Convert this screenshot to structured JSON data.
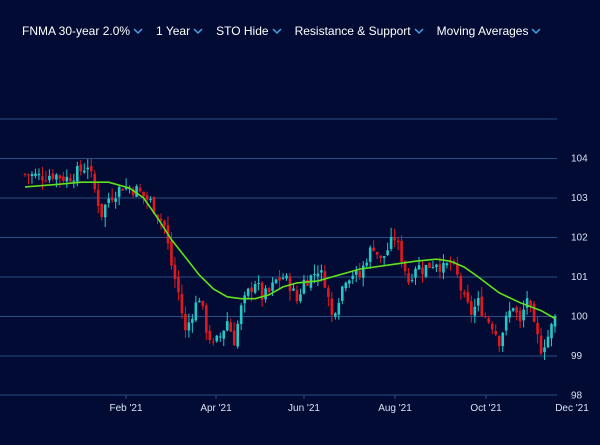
{
  "toolbar": {
    "symbol": "FNMA 30-year 2.0%",
    "range": "1 Year",
    "sto": "STO Hide",
    "resistance": "Resistance & Support",
    "moving_averages": "Moving Averages"
  },
  "colors": {
    "background": "#020b33",
    "grid": "#2a4f86",
    "axis_text": "#d8e1f0",
    "up": "#25c7c7",
    "down": "#e0191e",
    "ma": "#62e01d",
    "chevron": "#3ea4e6"
  },
  "chart_data": {
    "type": "candlestick",
    "x_ticks": [
      "Feb '21",
      "Apr '21",
      "Jun '21",
      "Aug '21",
      "Oct '21",
      "Dec '21"
    ],
    "y_ticks": [
      98,
      99,
      100,
      101,
      102,
      103,
      104
    ],
    "ylim": [
      97.9,
      105.1
    ],
    "close_path": [
      [
        0,
        103.6
      ],
      [
        4,
        103.55
      ],
      [
        8,
        103.6
      ],
      [
        12,
        103.5
      ],
      [
        16,
        103.7
      ],
      [
        18,
        103.85
      ],
      [
        20,
        103.2
      ],
      [
        22,
        102.6
      ],
      [
        24,
        103.0
      ],
      [
        28,
        103.3
      ],
      [
        32,
        103.2
      ],
      [
        36,
        102.9
      ],
      [
        40,
        102.3
      ],
      [
        42,
        101.3
      ],
      [
        44,
        100.6
      ],
      [
        46,
        99.6
      ],
      [
        48,
        100.1
      ],
      [
        50,
        100.5
      ],
      [
        52,
        99.7
      ],
      [
        54,
        99.25
      ],
      [
        56,
        99.5
      ],
      [
        58,
        99.9
      ],
      [
        60,
        99.4
      ],
      [
        62,
        100.2
      ],
      [
        64,
        100.6
      ],
      [
        66,
        100.9
      ],
      [
        68,
        100.5
      ],
      [
        70,
        100.6
      ],
      [
        72,
        100.9
      ],
      [
        74,
        101.0
      ],
      [
        76,
        100.8
      ],
      [
        78,
        100.4
      ],
      [
        80,
        100.9
      ],
      [
        82,
        101.0
      ],
      [
        84,
        101.2
      ],
      [
        86,
        100.9
      ],
      [
        88,
        100.0
      ],
      [
        90,
        100.5
      ],
      [
        92,
        101.0
      ],
      [
        94,
        101.1
      ],
      [
        96,
        101.0
      ],
      [
        98,
        101.5
      ],
      [
        100,
        101.8
      ],
      [
        102,
        101.4
      ],
      [
        104,
        101.7
      ],
      [
        106,
        102.0
      ],
      [
        108,
        101.5
      ],
      [
        110,
        100.9
      ],
      [
        112,
        101.3
      ],
      [
        114,
        101.2
      ],
      [
        116,
        101.3
      ],
      [
        118,
        101.4
      ],
      [
        120,
        101.2
      ],
      [
        122,
        101.35
      ],
      [
        124,
        101.0
      ],
      [
        126,
        100.4
      ],
      [
        128,
        100.1
      ],
      [
        130,
        100.35
      ],
      [
        132,
        100.0
      ],
      [
        134,
        99.8
      ],
      [
        136,
        99.4
      ],
      [
        138,
        99.9
      ],
      [
        140,
        100.3
      ],
      [
        142,
        99.8
      ],
      [
        144,
        100.5
      ],
      [
        146,
        99.7
      ],
      [
        148,
        99.2
      ],
      [
        150,
        99.5
      ],
      [
        152,
        99.95
      ]
    ],
    "moving_average": [
      [
        0,
        103.28
      ],
      [
        10,
        103.35
      ],
      [
        16,
        103.4
      ],
      [
        24,
        103.4
      ],
      [
        30,
        103.25
      ],
      [
        34,
        103.0
      ],
      [
        38,
        102.5
      ],
      [
        42,
        101.95
      ],
      [
        46,
        101.5
      ],
      [
        50,
        101.05
      ],
      [
        54,
        100.7
      ],
      [
        58,
        100.5
      ],
      [
        62,
        100.45
      ],
      [
        66,
        100.45
      ],
      [
        70,
        100.55
      ],
      [
        74,
        100.75
      ],
      [
        78,
        100.85
      ],
      [
        84,
        100.9
      ],
      [
        90,
        101.05
      ],
      [
        96,
        101.2
      ],
      [
        104,
        101.3
      ],
      [
        112,
        101.4
      ],
      [
        118,
        101.45
      ],
      [
        122,
        101.4
      ],
      [
        126,
        101.25
      ],
      [
        130,
        101.0
      ],
      [
        136,
        100.6
      ],
      [
        142,
        100.35
      ],
      [
        148,
        100.15
      ],
      [
        152,
        99.95
      ]
    ]
  }
}
